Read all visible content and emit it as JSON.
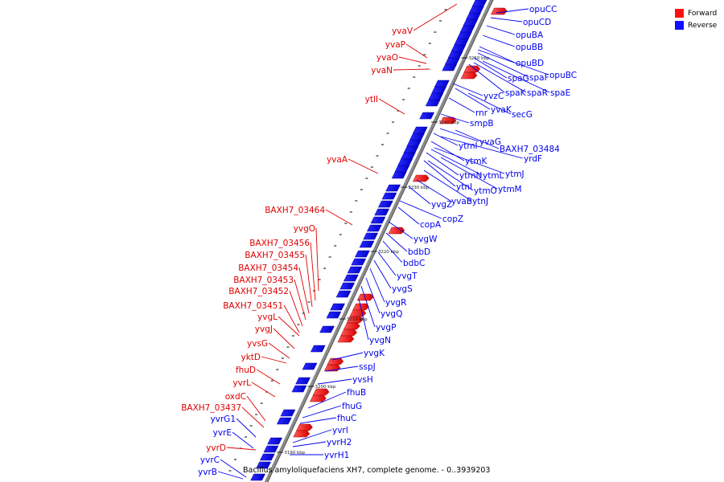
{
  "legend": {
    "forward_label": "Forward",
    "reverse_label": "Reverse",
    "forward_color": "#ff1010",
    "reverse_color": "#1010ff"
  },
  "caption": "Bacillus amyloliquefaciens XH7, complete genome. - 0..3939203",
  "ticks": [
    "3190 kbp",
    "3200 kbp",
    "3210 kbp",
    "3220 kbp",
    "3230 kbp",
    "3240 kbp",
    "3250 kbp"
  ],
  "forward_genes": [
    "yvaV",
    "yvaP",
    "yvaO",
    "yvaN",
    "ytlI",
    "yvaA",
    "BAXH7_03464",
    "yvgO",
    "BAXH7_03456",
    "BAXH7_03455",
    "BAXH7_03454",
    "BAXH7_03453",
    "BAXH7_03452",
    "BAXH7_03451",
    "yvgL",
    "yvgJ",
    "yvsG",
    "yktD",
    "fhuD",
    "yvrL",
    "oxdC",
    "BAXH7_03437",
    "yvrD"
  ],
  "reverse_genes": [
    "opuCC",
    "opuCD",
    "opuBA",
    "opuBB",
    "opuBD",
    "opuBC",
    "spaG",
    "spaF",
    "spaK",
    "spaR",
    "spaE",
    "yvzC",
    "yvaK",
    "rnr",
    "secG",
    "smpB",
    "yvaG",
    "ytmI",
    "BAXH7_03484",
    "yrdF",
    "ytmK",
    "ytmJ",
    "ytmN",
    "ytmL",
    "ytmM",
    "ytnI",
    "ytmO",
    "yvgZ",
    "yvaB",
    "ytnJ",
    "copZ",
    "copA",
    "yvgW",
    "bdbD",
    "bdbC",
    "yvgT",
    "yvgS",
    "yvgR",
    "yvgQ",
    "yvgP",
    "yvgN",
    "yvgK",
    "sspJ",
    "yvsH",
    "fhuB",
    "fhuG",
    "fhuC",
    "yvrI",
    "yvrH2",
    "yvrH1",
    "yvrG1",
    "yvrE",
    "yvrC",
    "yvrB"
  ]
}
